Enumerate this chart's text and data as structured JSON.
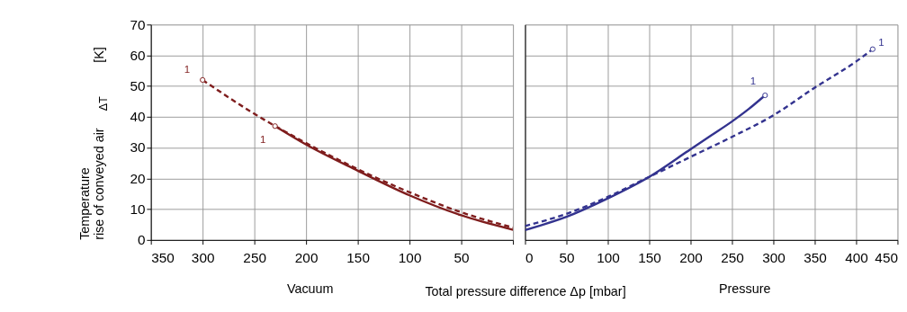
{
  "chart_data": [
    {
      "type": "line",
      "ylabel": "Temperature rise of conveyed air$_{ΔT}$ [K]",
      "xlim": [
        350,
        0
      ],
      "xticks": [
        350,
        300,
        250,
        200,
        150,
        100,
        50,
        {
          "value": 0,
          "label": null
        }
      ],
      "ylim": [
        0,
        70
      ],
      "yticks": [
        0,
        10,
        20,
        30,
        40,
        50,
        60,
        70
      ],
      "grid": true,
      "series": [
        {
          "line_style": "dashed",
          "color": "#7f1d1d",
          "x": [
            300,
            250,
            200,
            150,
            100,
            50,
            0
          ],
          "values": [
            52,
            41,
            31.5,
            23,
            15.5,
            9,
            4
          ]
        },
        {
          "line_style": "solid",
          "color": "#7f1d1d",
          "x": [
            230,
            200,
            150,
            100,
            50,
            0
          ],
          "values": [
            37,
            31,
            22.5,
            14.5,
            8,
            3.3
          ]
        },
        {
          "type": "scatter",
          "marker": "circle",
          "color": "#7f1d1d",
          "x": [
            300,
            230
          ],
          "values": [
            52,
            37
          ]
        }
      ],
      "annotations": [
        "Vacuum",
        {
          "text": "1",
          "x": 300,
          "y": 52
        },
        {
          "text": "1",
          "x": 230,
          "y": 37
        }
      ]
    },
    {
      "type": "line",
      "xlabel": "Total pressure difference Δp  [mbar]",
      "xlim": [
        0,
        450
      ],
      "xticks": [
        0,
        50,
        100,
        150,
        200,
        250,
        300,
        350,
        400,
        450
      ],
      "ylim": [
        0,
        70
      ],
      "yticks": [
        0,
        10,
        20,
        30,
        40,
        50,
        60,
        70
      ],
      "tick_labels": "x",
      "grid": true,
      "series": [
        {
          "line_style": "solid",
          "color": "#33338f",
          "x": [
            0,
            50,
            100,
            150,
            200,
            225,
            250,
            270,
            290
          ],
          "values": [
            3.2,
            7.5,
            13.5,
            20.5,
            29.5,
            34,
            38.5,
            42.5,
            47
          ]
        },
        {
          "line_style": "dashed",
          "color": "#33338f",
          "x": [
            0,
            50,
            100,
            150,
            200,
            250,
            300,
            350,
            400,
            420
          ],
          "values": [
            4.5,
            8.5,
            14,
            20.5,
            27,
            33.5,
            40.5,
            49.5,
            58,
            62
          ]
        },
        {
          "type": "scatter",
          "marker": "circle",
          "color": "#33338f",
          "x": [
            290,
            420
          ],
          "values": [
            47,
            62
          ]
        }
      ],
      "annotations": [
        "Pressure",
        {
          "text": "1",
          "x": 290,
          "y": 47
        },
        {
          "text": "1",
          "x": 420,
          "y": 62
        }
      ]
    }
  ]
}
